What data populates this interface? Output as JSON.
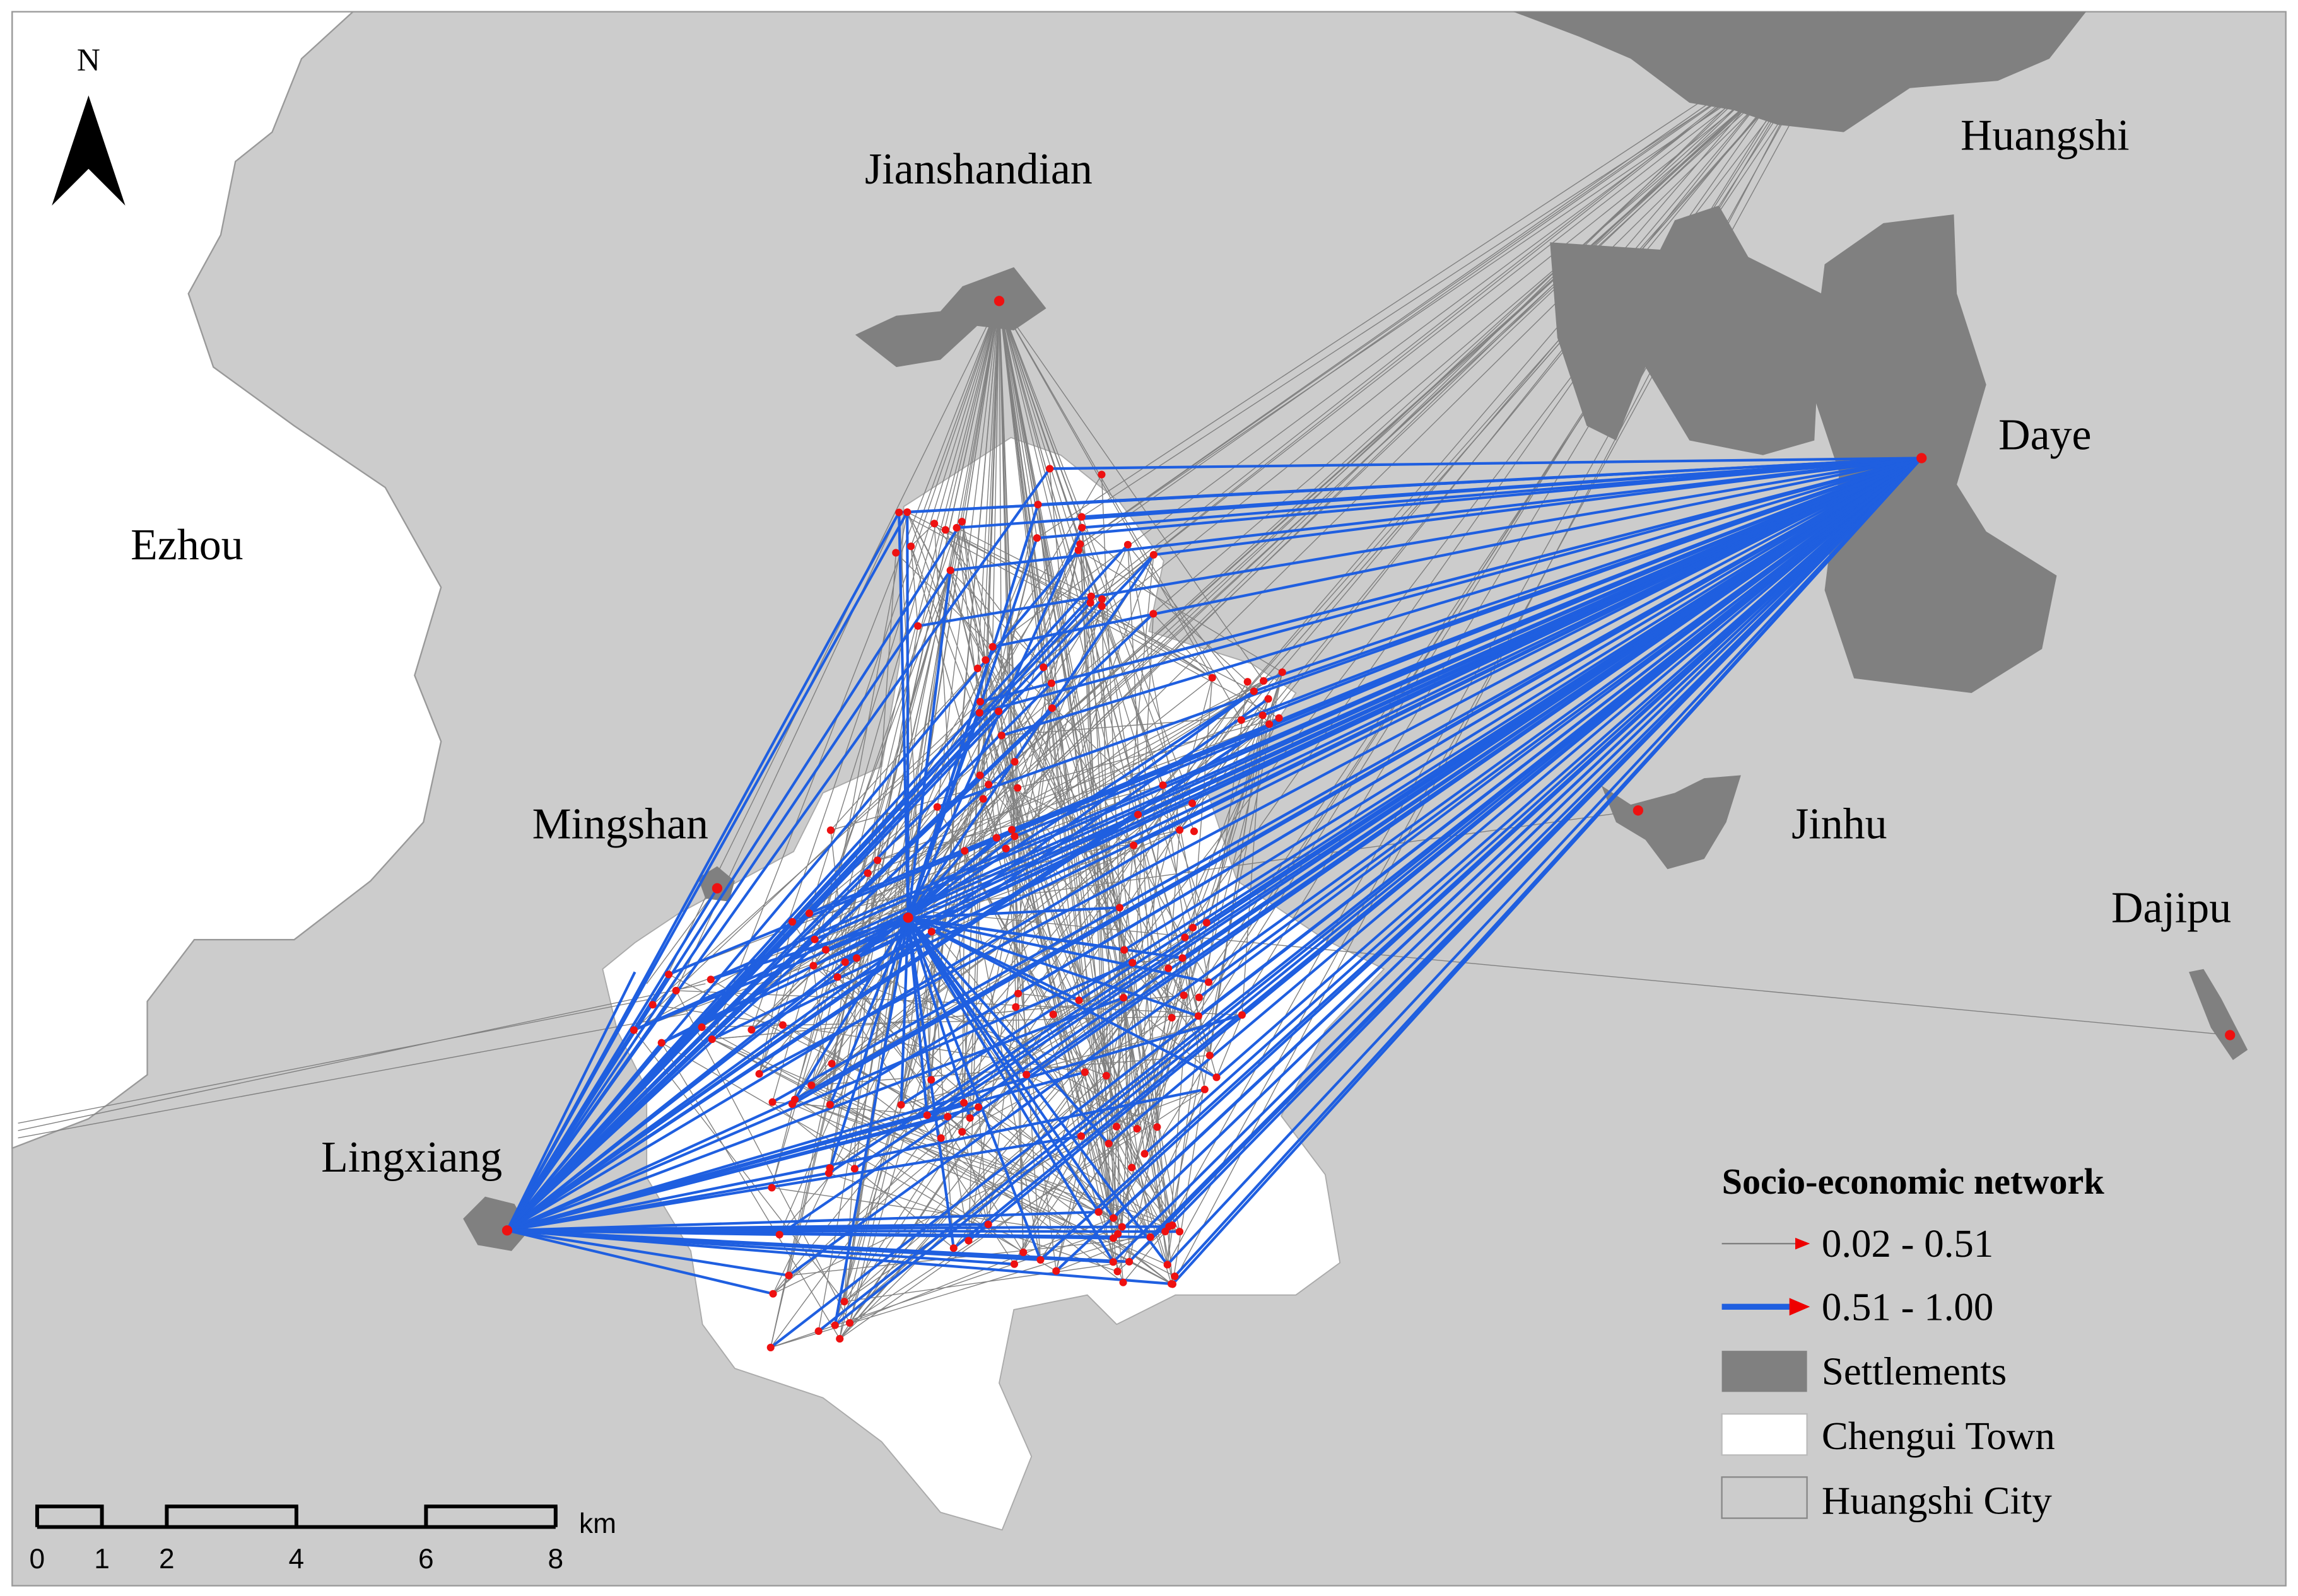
{
  "north": "N",
  "places": {
    "huangshi": "Huangshi",
    "jianshandian": "Jianshandian",
    "daye": "Daye",
    "ezhou": "Ezhou",
    "mingshan": "Mingshan",
    "jinhu": "Jinhu",
    "dajipu": "Dajipu",
    "lingxiang": "Lingxiang"
  },
  "legend": {
    "title": "Socio-economic network",
    "items": [
      "0.02 - 0.51",
      "0.51 - 1.00",
      "Settlements",
      "Chengui Town",
      "Huangshi City"
    ]
  },
  "scale_bar": {
    "ticks": [
      0,
      1,
      2,
      4,
      6,
      8
    ],
    "unit": "km"
  }
}
